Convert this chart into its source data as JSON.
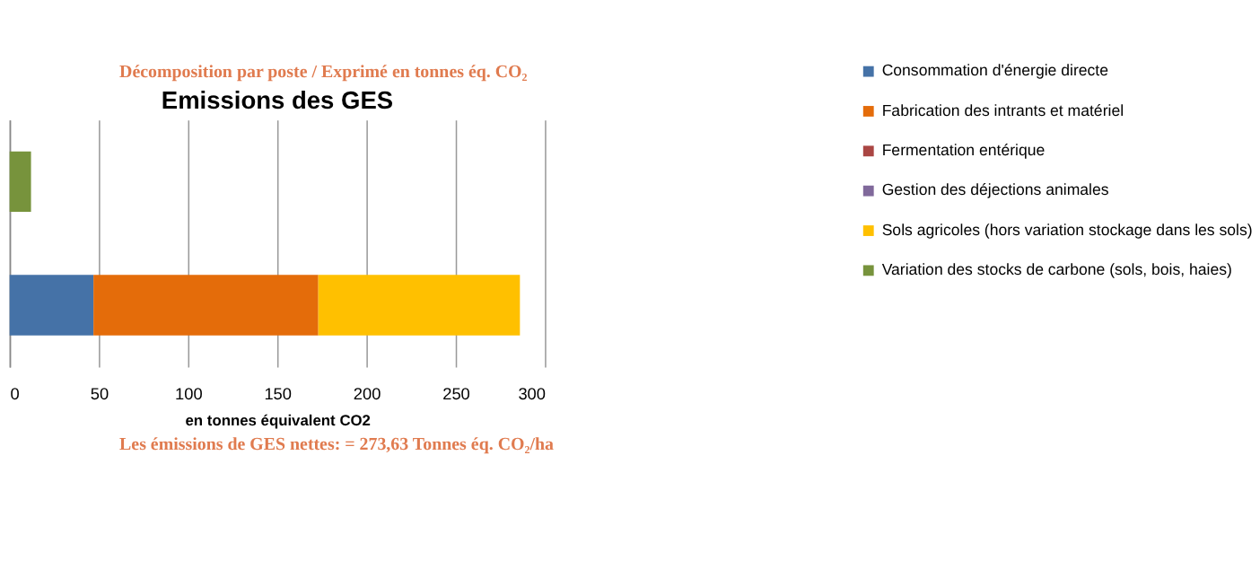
{
  "chart_data": {
    "type": "bar",
    "orientation": "horizontal",
    "stacked": true,
    "title": "Emissions des GES",
    "xlabel": "en tonnes équivalent CO2",
    "annotations": [
      "Décomposition par poste / Exprimé en tonnes éq. CO₂",
      "Les émissions de GES nettes: =  273,63  Tonnes éq. CO₂/ha"
    ],
    "categories": [
      null,
      null
    ],
    "series": [
      {
        "name": "Consommation d'énergie directe",
        "color": "#4572a7",
        "values": [
          null,
          47
        ]
      },
      {
        "name": "Fabrication des intrants et matériel",
        "color": "#e46c0a",
        "values": [
          null,
          126
        ]
      },
      {
        "name": "Fermentation entérique",
        "color": "#aa4643",
        "values": [
          null,
          null
        ]
      },
      {
        "name": "Gestion des déjections animales",
        "color": "#80699b",
        "values": [
          null,
          null
        ]
      },
      {
        "name": "Sols agricoles (hors variation stockage dans les sols)",
        "color": "#ffc000",
        "values": [
          null,
          113
        ]
      },
      {
        "name": "Variation des stocks de carbone (sols, bois, haies)",
        "color": "#77933c",
        "values": [
          12,
          null
        ]
      }
    ],
    "xlim": [
      0,
      300
    ],
    "xticks": [
      0,
      50,
      100,
      150,
      200,
      250,
      300
    ],
    "grid": "x",
    "legend": "right"
  }
}
